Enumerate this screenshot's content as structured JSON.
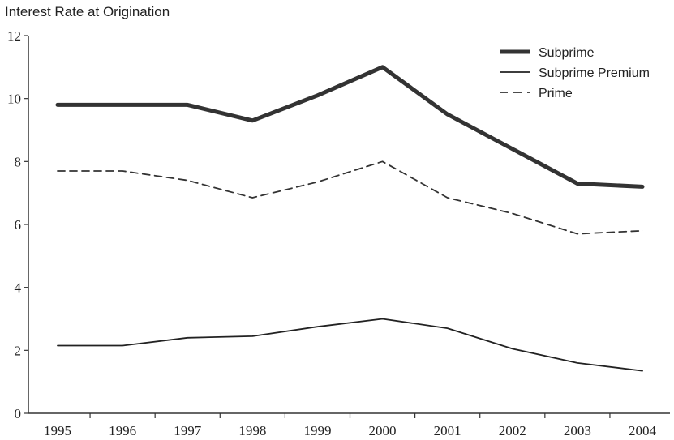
{
  "chart_data": {
    "type": "line",
    "title": "",
    "ylabel": "Interest Rate at Origination",
    "xlabel": "",
    "x": [
      "1995",
      "1996",
      "1997",
      "1998",
      "1999",
      "2000",
      "2001",
      "2002",
      "2003",
      "2004"
    ],
    "ylim": [
      0,
      12
    ],
    "yticks": [
      "0",
      "2",
      "4",
      "6",
      "8",
      "10",
      "12"
    ],
    "grid": false,
    "legend_position": "top-right",
    "series": [
      {
        "name": "Subprime",
        "style": "thick-solid",
        "color": "#333333",
        "values": [
          9.8,
          9.8,
          9.8,
          9.3,
          10.1,
          11.0,
          9.5,
          8.4,
          7.3,
          7.2
        ]
      },
      {
        "name": "Subprime Premium",
        "style": "thin-solid",
        "color": "#222222",
        "values": [
          2.15,
          2.15,
          2.4,
          2.45,
          2.75,
          3.0,
          2.7,
          2.05,
          1.6,
          1.35
        ]
      },
      {
        "name": "Prime",
        "style": "dashed",
        "color": "#333333",
        "values": [
          7.7,
          7.7,
          7.4,
          6.85,
          7.35,
          8.0,
          6.85,
          6.35,
          5.7,
          5.8
        ]
      }
    ]
  }
}
